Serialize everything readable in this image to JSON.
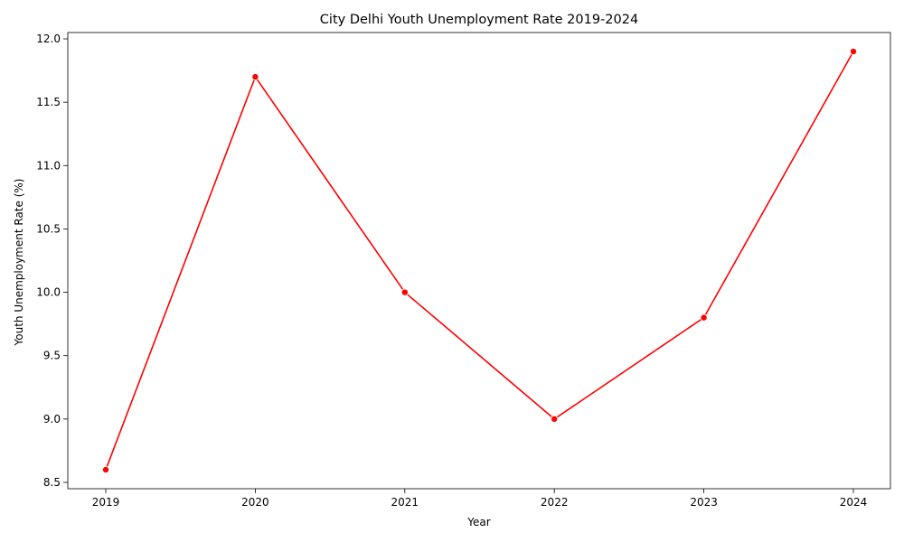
{
  "chart_data": {
    "type": "line",
    "title": "City Delhi Youth Unemployment Rate 2019-2024",
    "xlabel": "Year",
    "ylabel": "Youth Unemployment Rate (%)",
    "x": [
      "2019",
      "2020",
      "2021",
      "2022",
      "2023",
      "2024"
    ],
    "series": [
      {
        "values": [
          8.6,
          11.7,
          10.0,
          9.0,
          9.8,
          11.9
        ]
      }
    ],
    "yticks": [
      "8.5",
      "9.0",
      "9.5",
      "10.0",
      "10.5",
      "11.0",
      "11.5",
      "12.0"
    ],
    "ylim": [
      8.45,
      12.05
    ],
    "grid": false,
    "legend": "none",
    "line_color": "#ff0000",
    "marker_color": "#ff0000"
  }
}
